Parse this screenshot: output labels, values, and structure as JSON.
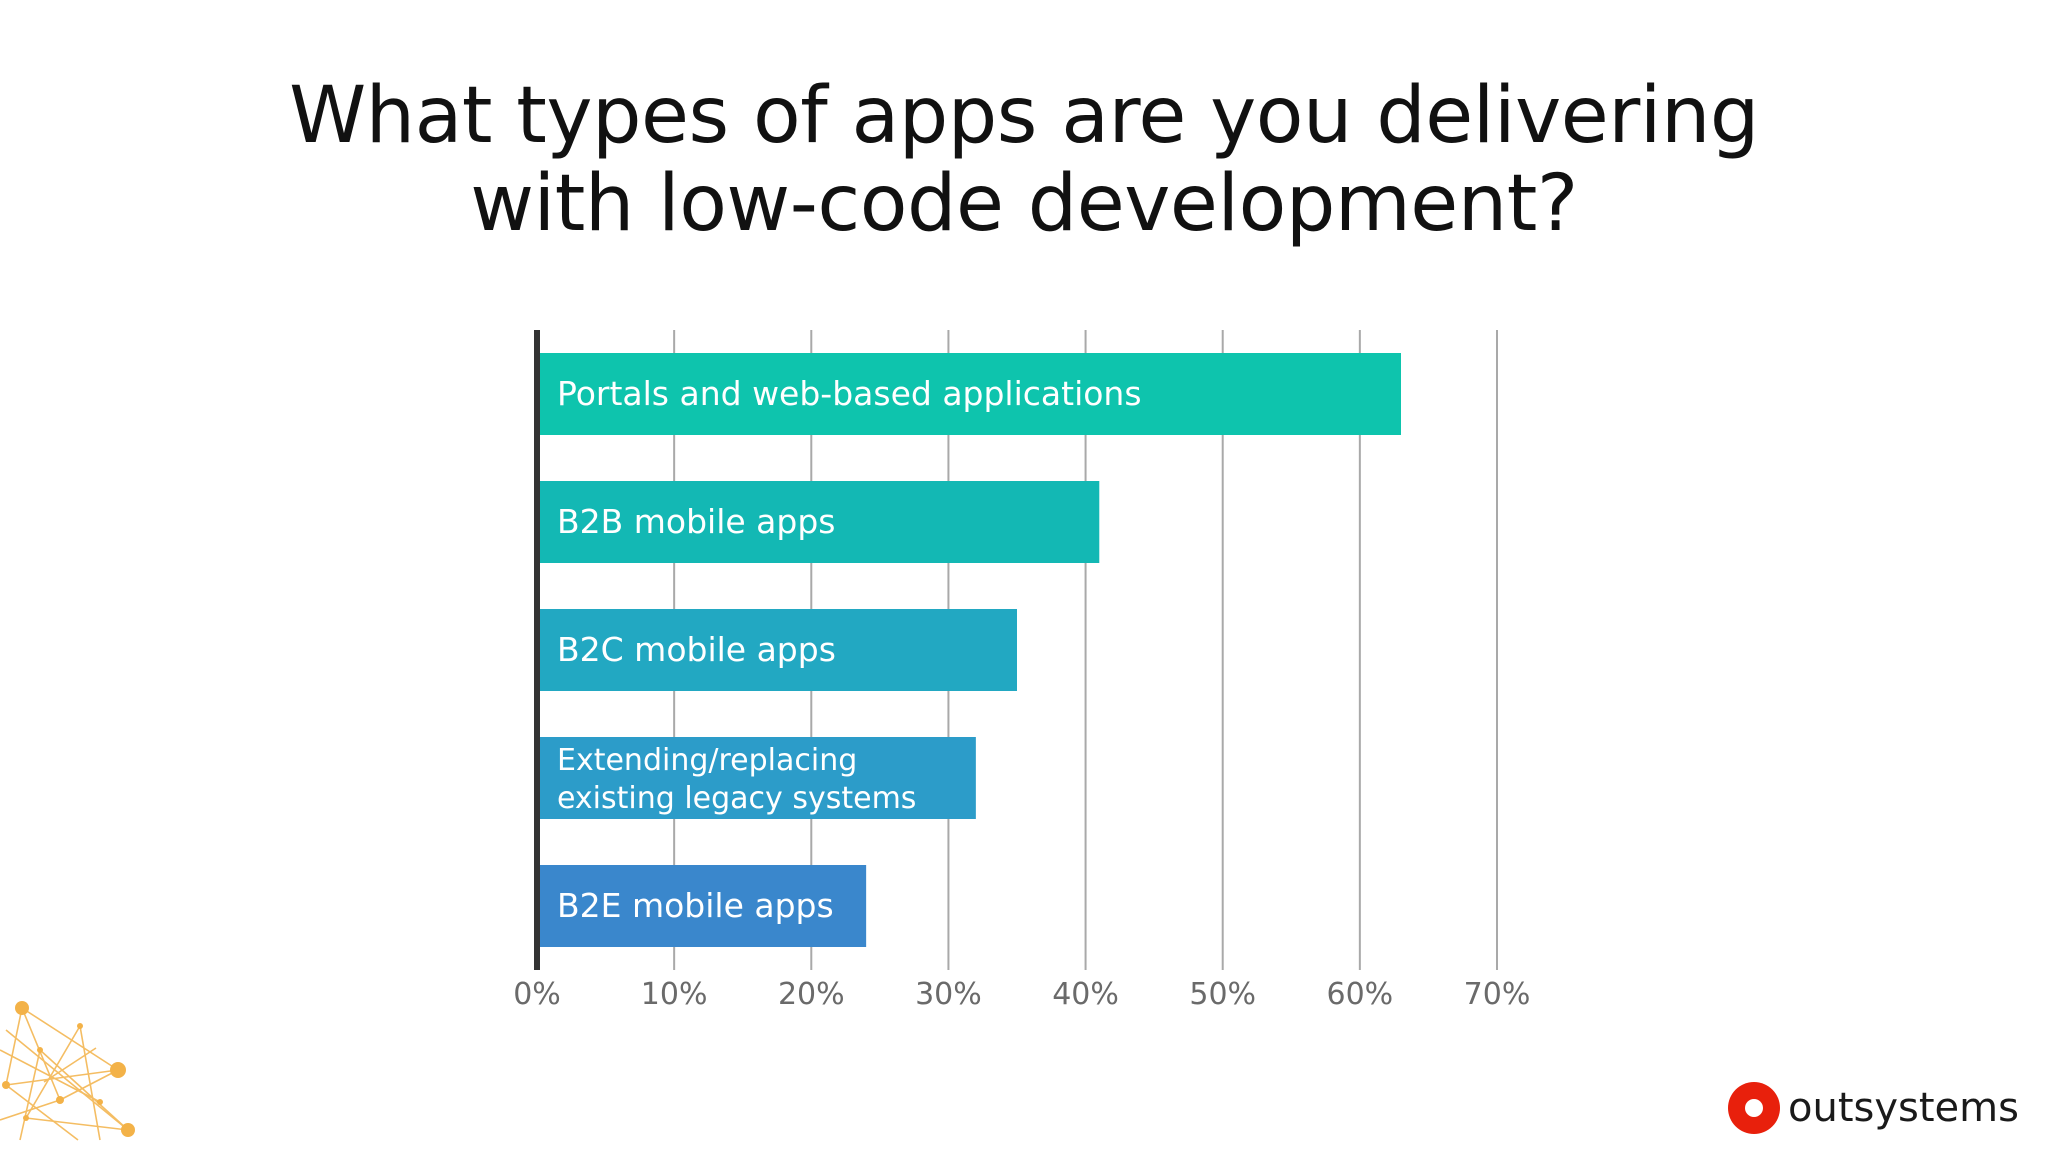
{
  "page": {
    "title_lines": [
      "What types of apps are you delivering",
      "with low-code development?"
    ],
    "brand": "outsystems",
    "brand_color": "#e8200c"
  },
  "chart_data": {
    "type": "bar",
    "orientation": "horizontal",
    "title": "What types of apps are you delivering with low-code development?",
    "categories": [
      "Portals and web-based applications",
      "B2B mobile apps",
      "B2C mobile apps",
      "Extending/replacing existing legacy systems",
      "B2E mobile apps"
    ],
    "category_lines": [
      [
        "Portals and web-based applications"
      ],
      [
        "B2B mobile apps"
      ],
      [
        "B2C mobile apps"
      ],
      [
        "Extending/replacing",
        "existing legacy systems"
      ],
      [
        "B2E mobile apps"
      ]
    ],
    "values": [
      63,
      41,
      35,
      32,
      24
    ],
    "bar_colors": [
      "#0ec4ad",
      "#13b8b4",
      "#22a8c2",
      "#2c9cc9",
      "#3a87cc"
    ],
    "xlim": [
      0,
      70
    ],
    "x_ticks": [
      0,
      10,
      20,
      30,
      40,
      50,
      60,
      70
    ],
    "x_tick_labels": [
      "0%",
      "10%",
      "20%",
      "30%",
      "40%",
      "50%",
      "60%",
      "70%"
    ],
    "grid": true,
    "legend": "none"
  }
}
